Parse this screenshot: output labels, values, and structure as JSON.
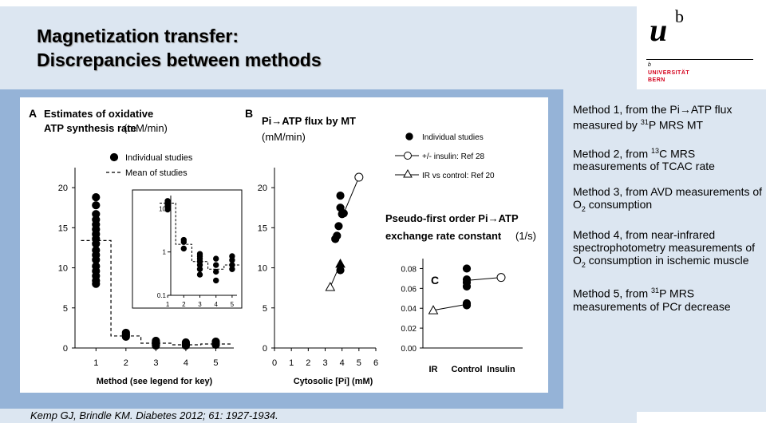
{
  "slide": {
    "title_line1": "Magnetization transfer:",
    "title_line2": "Discrepancies between methods",
    "citation": "Kemp GJ, Brindle KM. Diabetes 2012; 61: 1927-1934."
  },
  "logo": {
    "mark": "u",
    "superscript": "b",
    "small_b": "b",
    "line1": "UNIVERSITÄT",
    "line2": "BERN"
  },
  "methods": [
    {
      "pre": "Method 1, from the Pi→ATP flux measured by ",
      "sup": "31",
      "post": "P MRS MT"
    },
    {
      "pre": "Method 2, from ",
      "sup": "13",
      "post": "C MRS measurements of TCAC rate"
    },
    {
      "pre": "Method 3, from AVD measurements of O",
      "sub": "2",
      "post": " consumption"
    },
    {
      "pre": "Method 4, from near-infrared spectrophotometry measurements of O",
      "sub": "2",
      "post": " consumption in ischemic muscle"
    },
    {
      "pre": "Method 5, from ",
      "sup": "31",
      "post": "P MRS measurements of PCr decrease"
    }
  ],
  "chart_data": [
    {
      "panel": "A",
      "type": "scatter",
      "title": "Estimates of oxidative ATP synthesis rate",
      "title_units": "(mM/min)",
      "xlabel": "Method (see legend for key)",
      "ylabel": "",
      "xticks": [
        "1",
        "2",
        "3",
        "4",
        "5"
      ],
      "yticks": [
        "0",
        "5",
        "10",
        "15",
        "20"
      ],
      "xlim": [
        0.3,
        5.6
      ],
      "ylim": [
        0,
        22
      ],
      "legend": [
        "Individual studies",
        "Mean of studies"
      ],
      "legend_position": "top-right",
      "series": [
        {
          "name": "Individual studies",
          "points": [
            [
              1,
              18.8
            ],
            [
              1,
              17.8
            ],
            [
              1,
              16.7
            ],
            [
              1,
              16.0
            ],
            [
              1,
              15.4
            ],
            [
              1,
              14.8
            ],
            [
              1,
              14.2
            ],
            [
              1,
              13.6
            ],
            [
              1,
              13.0
            ],
            [
              1,
              12.2
            ],
            [
              1,
              11.6
            ],
            [
              1,
              11.0
            ],
            [
              1,
              10.2
            ],
            [
              1,
              9.6
            ],
            [
              1,
              9.0
            ],
            [
              1,
              8.4
            ],
            [
              1,
              8.0
            ],
            [
              2,
              1.9
            ],
            [
              2,
              1.7
            ],
            [
              2,
              1.6
            ],
            [
              2,
              1.4
            ],
            [
              3,
              0.9
            ],
            [
              3,
              0.8
            ],
            [
              3,
              0.7
            ],
            [
              3,
              0.6
            ],
            [
              3,
              0.5
            ],
            [
              3,
              0.4
            ],
            [
              3,
              0.3
            ],
            [
              4,
              0.7
            ],
            [
              4,
              0.5
            ],
            [
              4,
              0.4
            ],
            [
              4,
              0.3
            ],
            [
              5,
              0.8
            ],
            [
              5,
              0.6
            ],
            [
              5,
              0.5
            ],
            [
              5,
              0.4
            ]
          ]
        },
        {
          "name": "Mean of studies",
          "type": "step",
          "points": [
            [
              0.5,
              13.4
            ],
            [
              1.5,
              13.4
            ],
            [
              1.5,
              1.5
            ],
            [
              2.5,
              1.5
            ],
            [
              2.5,
              0.6
            ],
            [
              3.5,
              0.6
            ],
            [
              3.5,
              0.4
            ],
            [
              4.5,
              0.4
            ],
            [
              4.5,
              0.5
            ],
            [
              5.5,
              0.5
            ]
          ]
        }
      ],
      "inset": {
        "type": "scatter",
        "scale": "log",
        "xticks": [
          "1",
          "2",
          "3",
          "4",
          "5"
        ],
        "yticks": [
          "0.1",
          "1",
          "10"
        ],
        "ylim": [
          0.1,
          20
        ],
        "points": [
          [
            1,
            13.5
          ],
          [
            1,
            12.5
          ],
          [
            1,
            11.5
          ],
          [
            1,
            10.5
          ],
          [
            1,
            9.5
          ],
          [
            1,
            15.0
          ],
          [
            1,
            14.2
          ],
          [
            2,
            1.9
          ],
          [
            2,
            1.7
          ],
          [
            2,
            1.2
          ],
          [
            3,
            0.9
          ],
          [
            3,
            0.8
          ],
          [
            3,
            0.7
          ],
          [
            3,
            0.6
          ],
          [
            3,
            0.5
          ],
          [
            3,
            0.4
          ],
          [
            3,
            0.3
          ],
          [
            4,
            0.7
          ],
          [
            4,
            0.5
          ],
          [
            4,
            0.35
          ],
          [
            4,
            0.22
          ],
          [
            5,
            0.8
          ],
          [
            5,
            0.65
          ],
          [
            5,
            0.5
          ],
          [
            5,
            0.4
          ]
        ],
        "mean_step": [
          [
            0.5,
            13.4
          ],
          [
            1.5,
            13.4
          ],
          [
            1.5,
            1.5
          ],
          [
            2.5,
            1.5
          ],
          [
            2.5,
            0.6
          ],
          [
            3.5,
            0.6
          ],
          [
            3.5,
            0.4
          ],
          [
            4.5,
            0.4
          ],
          [
            4.5,
            0.5
          ],
          [
            5.5,
            0.5
          ]
        ]
      }
    },
    {
      "panel": "B",
      "type": "scatter",
      "title": "Pi→ATP flux by MT",
      "title_units": "(mM/min)",
      "xlabel": "Cytosolic [Pi]  (mM)",
      "ylabel": "",
      "xticks": [
        "0",
        "1",
        "2",
        "3",
        "4",
        "5",
        "6"
      ],
      "yticks": [
        "0",
        "5",
        "10",
        "15",
        "20"
      ],
      "xlim": [
        0,
        6
      ],
      "ylim": [
        0,
        22
      ],
      "legend": [
        "Individual studies",
        "+/- insulin: Ref 28",
        "IR vs control: Ref 20"
      ],
      "legend_position": "top-right",
      "series": [
        {
          "name": "Individual studies",
          "points": [
            [
              3.9,
              19.0
            ],
            [
              3.9,
              17.5
            ],
            [
              4.1,
              16.8
            ],
            [
              4.0,
              16.7
            ],
            [
              3.8,
              15.2
            ],
            [
              3.7,
              14.0
            ],
            [
              3.6,
              13.6
            ],
            [
              3.9,
              9.7
            ]
          ]
        },
        {
          "name": "+/- insulin: Ref 28",
          "points": [
            [
              4.1,
              16.8
            ],
            [
              5.0,
              21.3
            ]
          ]
        },
        {
          "name": "IR vs control: Ref 20",
          "points": [
            [
              3.3,
              7.6
            ],
            [
              3.9,
              10.5
            ]
          ]
        }
      ]
    },
    {
      "panel": "C",
      "type": "scatter",
      "title": "Pseudo-first order Pi→ATP exchange rate constant",
      "title_units": "(1/s)",
      "xlabel": "",
      "ylabel": "",
      "categories": [
        "IR",
        "Control",
        "Insulin"
      ],
      "yticks": [
        "0.00",
        "0.02",
        "0.04",
        "0.06",
        "0.08"
      ],
      "ylim": [
        0,
        0.09
      ],
      "series": [
        {
          "name": "Individual studies",
          "points": [
            [
              "Control",
              0.08
            ],
            [
              "Control",
              0.069
            ],
            [
              "Control",
              0.066
            ],
            [
              "Control",
              0.062
            ],
            [
              "Control",
              0.045
            ],
            [
              "Control",
              0.043
            ]
          ]
        },
        {
          "name": "+/- insulin: Ref 28",
          "points": [
            [
              "Control",
              0.068
            ],
            [
              "Insulin",
              0.071
            ]
          ]
        },
        {
          "name": "IR vs control: Ref 20",
          "points": [
            [
              "IR",
              0.038
            ],
            [
              "Control",
              0.044
            ]
          ]
        }
      ]
    }
  ]
}
